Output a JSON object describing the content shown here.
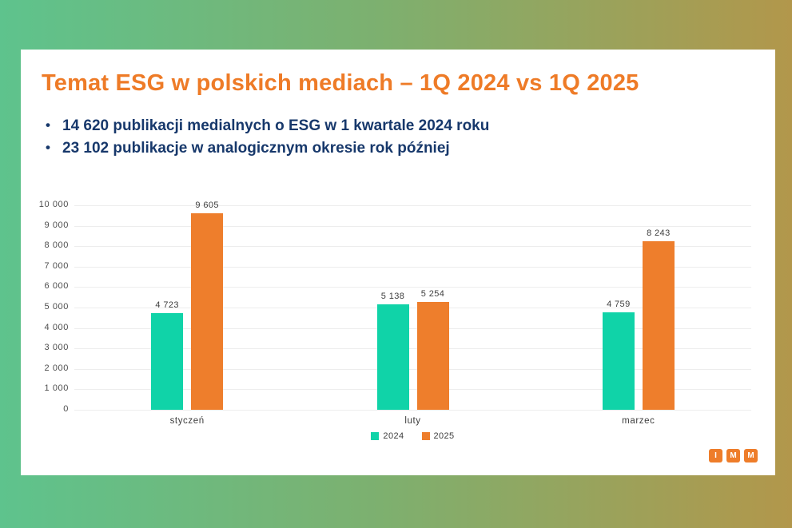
{
  "slide": {
    "title": "Temat ESG w polskich mediach – 1Q 2024 vs 1Q 2025",
    "bullets": [
      "14 620 publikacji medialnych o ESG w 1 kwartale 2024 roku",
      "23 102 publikacje w analogicznym okresie rok później"
    ],
    "logo_letters": [
      "I",
      "M",
      "M"
    ]
  },
  "colors": {
    "background_left": "#5ec38d",
    "background_right": "#b2974b",
    "card": "#ffffff",
    "title_text": "#ee7b27",
    "bullet_text": "#17386b",
    "series_2024": "#10d3a8",
    "series_2025": "#ee7e2c",
    "gridline": "#ededed",
    "axis_text": "#4d4d4d",
    "logo_orange": "#ee7d2a"
  },
  "chart_data": {
    "type": "bar",
    "title": "",
    "xlabel": "",
    "ylabel": "",
    "categories": [
      "styczeń",
      "luty",
      "marzec"
    ],
    "series": [
      {
        "name": "2024",
        "color": "#10d3a8",
        "values": [
          4723,
          5138,
          4759
        ]
      },
      {
        "name": "2025",
        "color": "#ee7e2c",
        "values": [
          9605,
          5254,
          8243
        ]
      }
    ],
    "value_labels": [
      [
        "4 723",
        "5 138",
        "4 759"
      ],
      [
        "9 605",
        "5 254",
        "8 243"
      ]
    ],
    "y_ticks": [
      "0",
      "1 000",
      "2 000",
      "3 000",
      "4 000",
      "5 000",
      "6 000",
      "7 000",
      "8 000",
      "9 000",
      "10 000"
    ],
    "ylim": [
      0,
      10000
    ],
    "y_step": 1000,
    "grid": true,
    "legend_position": "bottom"
  }
}
